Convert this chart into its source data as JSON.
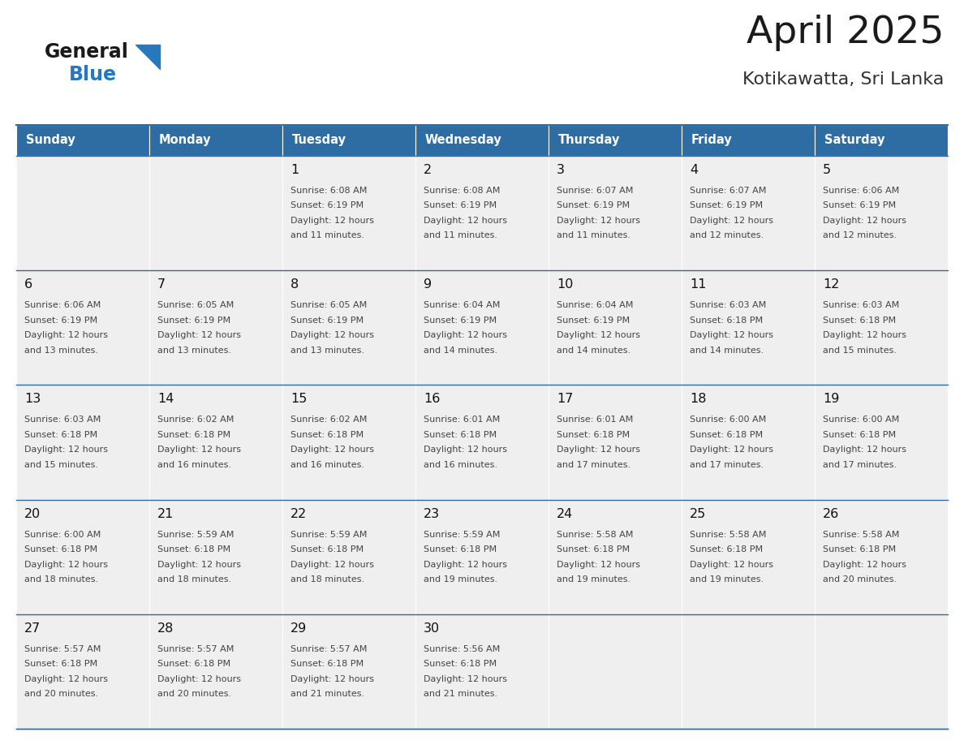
{
  "title": "April 2025",
  "subtitle": "Kotikawatta, Sri Lanka",
  "header_bg": "#2E6DA4",
  "header_text_color": "#FFFFFF",
  "cell_bg": "#EFEFEF",
  "day_headers": [
    "Sunday",
    "Monday",
    "Tuesday",
    "Wednesday",
    "Thursday",
    "Friday",
    "Saturday"
  ],
  "line_color": "#2E6DA4",
  "text_color": "#444444",
  "day_num_color": "#111111",
  "calendar": [
    [
      {
        "day": "",
        "sunrise": "",
        "sunset": "",
        "daylight": ""
      },
      {
        "day": "",
        "sunrise": "",
        "sunset": "",
        "daylight": ""
      },
      {
        "day": "1",
        "sunrise": "6:08 AM",
        "sunset": "6:19 PM",
        "daylight": "12 hours and 11 minutes."
      },
      {
        "day": "2",
        "sunrise": "6:08 AM",
        "sunset": "6:19 PM",
        "daylight": "12 hours and 11 minutes."
      },
      {
        "day": "3",
        "sunrise": "6:07 AM",
        "sunset": "6:19 PM",
        "daylight": "12 hours and 11 minutes."
      },
      {
        "day": "4",
        "sunrise": "6:07 AM",
        "sunset": "6:19 PM",
        "daylight": "12 hours and 12 minutes."
      },
      {
        "day": "5",
        "sunrise": "6:06 AM",
        "sunset": "6:19 PM",
        "daylight": "12 hours and 12 minutes."
      }
    ],
    [
      {
        "day": "6",
        "sunrise": "6:06 AM",
        "sunset": "6:19 PM",
        "daylight": "12 hours and 13 minutes."
      },
      {
        "day": "7",
        "sunrise": "6:05 AM",
        "sunset": "6:19 PM",
        "daylight": "12 hours and 13 minutes."
      },
      {
        "day": "8",
        "sunrise": "6:05 AM",
        "sunset": "6:19 PM",
        "daylight": "12 hours and 13 minutes."
      },
      {
        "day": "9",
        "sunrise": "6:04 AM",
        "sunset": "6:19 PM",
        "daylight": "12 hours and 14 minutes."
      },
      {
        "day": "10",
        "sunrise": "6:04 AM",
        "sunset": "6:19 PM",
        "daylight": "12 hours and 14 minutes."
      },
      {
        "day": "11",
        "sunrise": "6:03 AM",
        "sunset": "6:18 PM",
        "daylight": "12 hours and 14 minutes."
      },
      {
        "day": "12",
        "sunrise": "6:03 AM",
        "sunset": "6:18 PM",
        "daylight": "12 hours and 15 minutes."
      }
    ],
    [
      {
        "day": "13",
        "sunrise": "6:03 AM",
        "sunset": "6:18 PM",
        "daylight": "12 hours and 15 minutes."
      },
      {
        "day": "14",
        "sunrise": "6:02 AM",
        "sunset": "6:18 PM",
        "daylight": "12 hours and 16 minutes."
      },
      {
        "day": "15",
        "sunrise": "6:02 AM",
        "sunset": "6:18 PM",
        "daylight": "12 hours and 16 minutes."
      },
      {
        "day": "16",
        "sunrise": "6:01 AM",
        "sunset": "6:18 PM",
        "daylight": "12 hours and 16 minutes."
      },
      {
        "day": "17",
        "sunrise": "6:01 AM",
        "sunset": "6:18 PM",
        "daylight": "12 hours and 17 minutes."
      },
      {
        "day": "18",
        "sunrise": "6:00 AM",
        "sunset": "6:18 PM",
        "daylight": "12 hours and 17 minutes."
      },
      {
        "day": "19",
        "sunrise": "6:00 AM",
        "sunset": "6:18 PM",
        "daylight": "12 hours and 17 minutes."
      }
    ],
    [
      {
        "day": "20",
        "sunrise": "6:00 AM",
        "sunset": "6:18 PM",
        "daylight": "12 hours and 18 minutes."
      },
      {
        "day": "21",
        "sunrise": "5:59 AM",
        "sunset": "6:18 PM",
        "daylight": "12 hours and 18 minutes."
      },
      {
        "day": "22",
        "sunrise": "5:59 AM",
        "sunset": "6:18 PM",
        "daylight": "12 hours and 18 minutes."
      },
      {
        "day": "23",
        "sunrise": "5:59 AM",
        "sunset": "6:18 PM",
        "daylight": "12 hours and 19 minutes."
      },
      {
        "day": "24",
        "sunrise": "5:58 AM",
        "sunset": "6:18 PM",
        "daylight": "12 hours and 19 minutes."
      },
      {
        "day": "25",
        "sunrise": "5:58 AM",
        "sunset": "6:18 PM",
        "daylight": "12 hours and 19 minutes."
      },
      {
        "day": "26",
        "sunrise": "5:58 AM",
        "sunset": "6:18 PM",
        "daylight": "12 hours and 20 minutes."
      }
    ],
    [
      {
        "day": "27",
        "sunrise": "5:57 AM",
        "sunset": "6:18 PM",
        "daylight": "12 hours and 20 minutes."
      },
      {
        "day": "28",
        "sunrise": "5:57 AM",
        "sunset": "6:18 PM",
        "daylight": "12 hours and 20 minutes."
      },
      {
        "day": "29",
        "sunrise": "5:57 AM",
        "sunset": "6:18 PM",
        "daylight": "12 hours and 21 minutes."
      },
      {
        "day": "30",
        "sunrise": "5:56 AM",
        "sunset": "6:18 PM",
        "daylight": "12 hours and 21 minutes."
      },
      {
        "day": "",
        "sunrise": "",
        "sunset": "",
        "daylight": ""
      },
      {
        "day": "",
        "sunrise": "",
        "sunset": "",
        "daylight": ""
      },
      {
        "day": "",
        "sunrise": "",
        "sunset": "",
        "daylight": ""
      }
    ]
  ],
  "logo_general_color": "#1a1a1a",
  "logo_blue_color": "#2878BE",
  "logo_triangle_color": "#2878BE"
}
